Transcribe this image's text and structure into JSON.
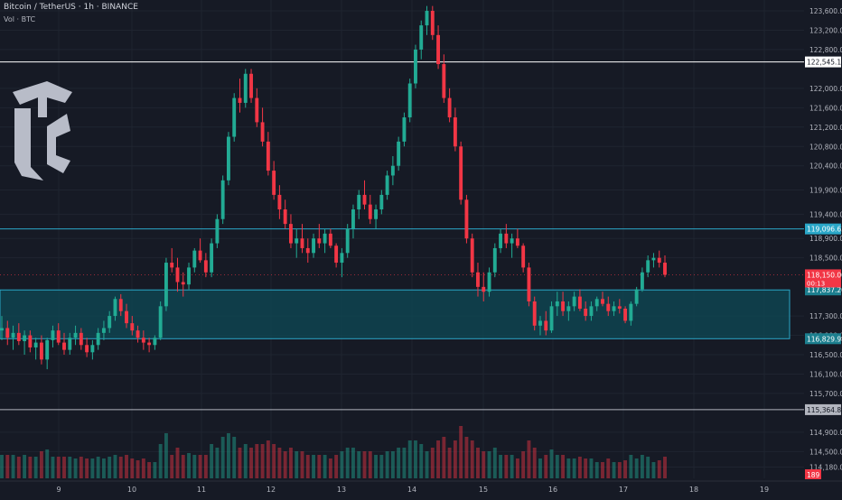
{
  "header": {
    "symbol": "Bitcoin / TetherUS · 1h · BINANCE",
    "volume_label": "Vol · BTC"
  },
  "chart_data": {
    "type": "candlestick",
    "price_axis": {
      "ticks": [
        123600,
        123200,
        122800,
        122000,
        121600,
        121200,
        120800,
        120400,
        119900,
        119400,
        118900,
        118500,
        117300,
        116900,
        116500,
        116100,
        115700,
        114900,
        114500,
        114180
      ],
      "tick_labels": [
        "123,600.00",
        "123,200.00",
        "122,800.00",
        "122,000.00",
        "121,600.00",
        "121,200.00",
        "120,800.00",
        "120,400.00",
        "119,900.00",
        "119,400.00",
        "118,900.00",
        "118,500.00",
        "117,300.00",
        "116,900.00",
        "116,500.00",
        "116,100.00",
        "115,700.00",
        "114,900.00",
        "114,500.00",
        "114,180.00"
      ]
    },
    "time_axis": {
      "labels": [
        "9",
        "10",
        "11",
        "12",
        "13",
        "14",
        "15",
        "16",
        "17",
        "18",
        "19"
      ]
    },
    "horizontal_levels": [
      {
        "price": 122545.18,
        "label": "122,545.18",
        "color": "#ffffff"
      },
      {
        "price": 119096.63,
        "label": "119,096.63",
        "color": "#2aa7c8"
      },
      {
        "price": 115364.88,
        "label": "115,364.88",
        "color": "#b2b5be"
      }
    ],
    "zone": {
      "top": 117837.2,
      "bottom": 116829.98,
      "top_label": "117,837.20",
      "bottom_label": "116,829.98",
      "color": "#0e4a55"
    },
    "current_price": {
      "price": 118150.0,
      "label": "118,150.00",
      "countdown": "00:13",
      "color": "#f23645"
    },
    "volume_badge": {
      "label": "189",
      "color": "#f23645"
    },
    "candles_ohlc": [
      [
        117000,
        117300,
        116800,
        117050
      ],
      [
        117050,
        117200,
        116700,
        116850
      ],
      [
        116850,
        117100,
        116600,
        116950
      ],
      [
        116950,
        117150,
        116700,
        116780
      ],
      [
        116780,
        117000,
        116500,
        116900
      ],
      [
        116900,
        117000,
        116550,
        116650
      ],
      [
        116650,
        116850,
        116400,
        116750
      ],
      [
        116750,
        116900,
        116300,
        116400
      ],
      [
        116400,
        116850,
        116200,
        116800
      ],
      [
        116800,
        117100,
        116650,
        117000
      ],
      [
        117000,
        117150,
        116700,
        116750
      ],
      [
        116750,
        116950,
        116500,
        116600
      ],
      [
        116600,
        116950,
        116500,
        116850
      ],
      [
        116850,
        117100,
        116700,
        116950
      ],
      [
        116950,
        117050,
        116600,
        116700
      ],
      [
        116700,
        116850,
        116450,
        116550
      ],
      [
        116550,
        116800,
        116400,
        116700
      ],
      [
        116700,
        117050,
        116600,
        116950
      ],
      [
        116950,
        117200,
        116800,
        117050
      ],
      [
        117050,
        117400,
        116950,
        117300
      ],
      [
        117300,
        117700,
        117200,
        117650
      ],
      [
        117650,
        117750,
        117300,
        117400
      ],
      [
        117400,
        117550,
        117050,
        117150
      ],
      [
        117150,
        117300,
        116900,
        117000
      ],
      [
        117000,
        117100,
        116750,
        116850
      ],
      [
        116850,
        117000,
        116600,
        116750
      ],
      [
        116750,
        116850,
        116550,
        116700
      ],
      [
        116700,
        116900,
        116600,
        116850
      ],
      [
        116850,
        117600,
        116800,
        117500
      ],
      [
        117500,
        118500,
        117400,
        118400
      ],
      [
        118400,
        118700,
        118200,
        118300
      ],
      [
        118300,
        118500,
        117800,
        118000
      ],
      [
        118000,
        118200,
        117700,
        117950
      ],
      [
        117950,
        118400,
        117850,
        118300
      ],
      [
        118300,
        118700,
        118200,
        118650
      ],
      [
        118650,
        118900,
        118400,
        118450
      ],
      [
        118450,
        118600,
        118100,
        118200
      ],
      [
        118200,
        118900,
        118100,
        118800
      ],
      [
        118800,
        119400,
        118700,
        119300
      ],
      [
        119300,
        120200,
        119200,
        120100
      ],
      [
        120100,
        121100,
        120000,
        121000
      ],
      [
        121000,
        121900,
        120900,
        121800
      ],
      [
        121800,
        122200,
        121500,
        121700
      ],
      [
        121700,
        122400,
        121600,
        122300
      ],
      [
        122300,
        122400,
        121700,
        121800
      ],
      [
        121800,
        122000,
        121200,
        121300
      ],
      [
        121300,
        121600,
        120800,
        120900
      ],
      [
        120900,
        121100,
        120200,
        120300
      ],
      [
        120300,
        120500,
        119700,
        119800
      ],
      [
        119800,
        120000,
        119300,
        119500
      ],
      [
        119500,
        119700,
        119100,
        119200
      ],
      [
        119200,
        119400,
        118700,
        118800
      ],
      [
        118800,
        119100,
        118500,
        118900
      ],
      [
        118900,
        119200,
        118600,
        118700
      ],
      [
        118700,
        118900,
        118400,
        118600
      ],
      [
        118600,
        119000,
        118500,
        118900
      ],
      [
        118900,
        119200,
        118700,
        118800
      ],
      [
        118800,
        119100,
        118600,
        119000
      ],
      [
        119000,
        119100,
        118700,
        118750
      ],
      [
        118750,
        118800,
        118300,
        118400
      ],
      [
        118400,
        118700,
        118100,
        118600
      ],
      [
        118600,
        119200,
        118500,
        119100
      ],
      [
        119100,
        119600,
        118900,
        119500
      ],
      [
        119500,
        119900,
        119300,
        119800
      ],
      [
        119800,
        120100,
        119500,
        119600
      ],
      [
        119600,
        119800,
        119200,
        119300
      ],
      [
        119300,
        119600,
        119100,
        119500
      ],
      [
        119500,
        119900,
        119400,
        119800
      ],
      [
        119800,
        120300,
        119700,
        120200
      ],
      [
        120200,
        120600,
        120000,
        120400
      ],
      [
        120400,
        121000,
        120300,
        120900
      ],
      [
        120900,
        121500,
        120800,
        121400
      ],
      [
        121400,
        122200,
        121300,
        122100
      ],
      [
        122100,
        122900,
        122000,
        122800
      ],
      [
        122800,
        123400,
        122600,
        123300
      ],
      [
        123300,
        123700,
        123100,
        123600
      ],
      [
        123600,
        123700,
        123000,
        123100
      ],
      [
        123100,
        123300,
        122400,
        122500
      ],
      [
        122500,
        122700,
        121700,
        121800
      ],
      [
        121800,
        122000,
        121300,
        121400
      ],
      [
        121400,
        121600,
        120700,
        120800
      ],
      [
        120800,
        120900,
        119600,
        119700
      ],
      [
        119700,
        119800,
        118800,
        118900
      ],
      [
        118900,
        119000,
        118100,
        118200
      ],
      [
        118200,
        118400,
        117700,
        117900
      ],
      [
        117900,
        118200,
        117600,
        117800
      ],
      [
        117800,
        118300,
        117700,
        118200
      ],
      [
        118200,
        118800,
        118100,
        118700
      ],
      [
        118700,
        119100,
        118600,
        119000
      ],
      [
        119000,
        119200,
        118700,
        118800
      ],
      [
        118800,
        119000,
        118500,
        118900
      ],
      [
        118900,
        119100,
        118700,
        118750
      ],
      [
        118750,
        118800,
        118200,
        118300
      ],
      [
        118300,
        118400,
        117500,
        117600
      ],
      [
        117600,
        117700,
        117000,
        117100
      ],
      [
        117100,
        117300,
        116900,
        117200
      ],
      [
        117200,
        117400,
        116900,
        117000
      ],
      [
        117000,
        117600,
        116950,
        117500
      ],
      [
        117500,
        117800,
        117300,
        117600
      ],
      [
        117600,
        117800,
        117300,
        117400
      ],
      [
        117400,
        117600,
        117200,
        117500
      ],
      [
        117500,
        117800,
        117400,
        117700
      ],
      [
        117700,
        117850,
        117400,
        117450
      ],
      [
        117450,
        117600,
        117200,
        117300
      ],
      [
        117300,
        117600,
        117200,
        117500
      ],
      [
        117500,
        117700,
        117400,
        117650
      ],
      [
        117650,
        117800,
        117500,
        117550
      ],
      [
        117550,
        117700,
        117300,
        117400
      ],
      [
        117400,
        117600,
        117300,
        117500
      ],
      [
        117500,
        117650,
        117350,
        117450
      ],
      [
        117450,
        117500,
        117150,
        117200
      ],
      [
        117200,
        117600,
        117100,
        117550
      ],
      [
        117550,
        117900,
        117500,
        117850
      ],
      [
        117850,
        118300,
        117800,
        118200
      ],
      [
        118200,
        118550,
        118100,
        118450
      ],
      [
        118450,
        118600,
        118300,
        118500
      ],
      [
        118500,
        118650,
        118300,
        118400
      ],
      [
        118400,
        118550,
        118100,
        118150
      ]
    ]
  }
}
